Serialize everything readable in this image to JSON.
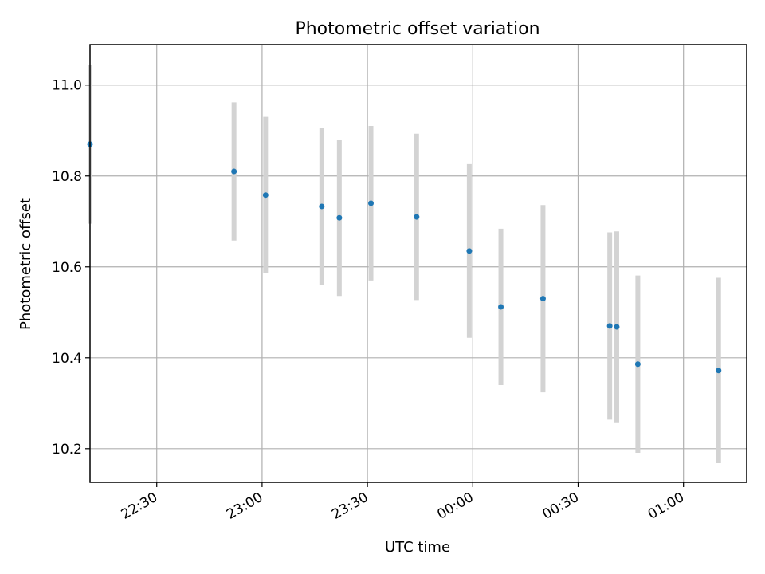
{
  "chart_data": {
    "type": "scatter",
    "title": "Photometric offset variation",
    "xlabel": "UTC time",
    "ylabel": "Photometric offset",
    "x_ticks": [
      "22:30",
      "23:00",
      "23:30",
      "00:00",
      "00:30",
      "01:00"
    ],
    "y_ticks": [
      "10.2",
      "10.4",
      "10.6",
      "10.8",
      "11.0"
    ],
    "xlim": [
      "22:11",
      "01:18"
    ],
    "ylim": [
      10.126,
      11.089
    ],
    "grid": true,
    "point_color": "#1f77b4",
    "errorbar_color": "#d3d3d3",
    "series": [
      {
        "points": [
          {
            "time": "22:11",
            "value": 10.87,
            "err": 0.175
          },
          {
            "time": "22:52",
            "value": 10.81,
            "err": 0.152
          },
          {
            "time": "23:01",
            "value": 10.758,
            "err": 0.172
          },
          {
            "time": "23:17",
            "value": 10.733,
            "err": 0.173
          },
          {
            "time": "23:22",
            "value": 10.708,
            "err": 0.172
          },
          {
            "time": "23:31",
            "value": 10.74,
            "err": 0.17
          },
          {
            "time": "23:44",
            "value": 10.71,
            "err": 0.183
          },
          {
            "time": "23:59",
            "value": 10.635,
            "err": 0.191
          },
          {
            "time": "00:08",
            "value": 10.512,
            "err": 0.172
          },
          {
            "time": "00:20",
            "value": 10.53,
            "err": 0.206
          },
          {
            "time": "00:39",
            "value": 10.47,
            "err": 0.206
          },
          {
            "time": "00:41",
            "value": 10.468,
            "err": 0.21
          },
          {
            "time": "00:47",
            "value": 10.386,
            "err": 0.195
          },
          {
            "time": "01:10",
            "value": 10.372,
            "err": 0.204
          }
        ]
      }
    ]
  }
}
